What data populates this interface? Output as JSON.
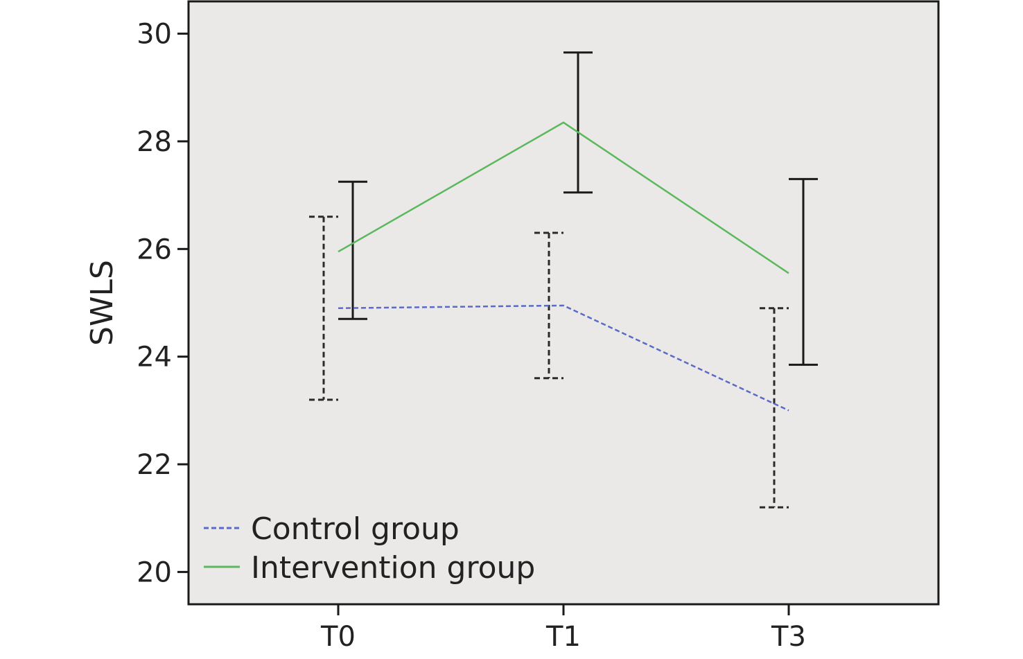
{
  "chart_data": {
    "type": "line",
    "title": "",
    "xlabel": "",
    "ylabel": "SWLS",
    "categories": [
      "T0",
      "T1",
      "T3"
    ],
    "ylim": [
      19.4,
      30.6
    ],
    "yticks": [
      20,
      22,
      24,
      26,
      28,
      30
    ],
    "ytick_labels": [
      "20",
      "22",
      "24",
      "26",
      "28",
      "30"
    ],
    "grid": false,
    "legend_position": "bottom-left",
    "plot_background": "#eae9e8",
    "series": [
      {
        "name": "Control group",
        "values": [
          24.9,
          24.95,
          23.0
        ],
        "error_low": [
          23.2,
          23.6,
          21.2
        ],
        "error_high": [
          26.6,
          26.3,
          24.9
        ],
        "color": "#5a6ac8",
        "line_style": "dashed",
        "error_bar_style": "dashed"
      },
      {
        "name": "Intervention group",
        "values": [
          25.95,
          28.35,
          25.55
        ],
        "error_low": [
          24.7,
          27.05,
          23.85
        ],
        "error_high": [
          27.25,
          29.65,
          27.3
        ],
        "color": "#5cb85c",
        "line_style": "solid",
        "error_bar_style": "solid"
      }
    ]
  }
}
